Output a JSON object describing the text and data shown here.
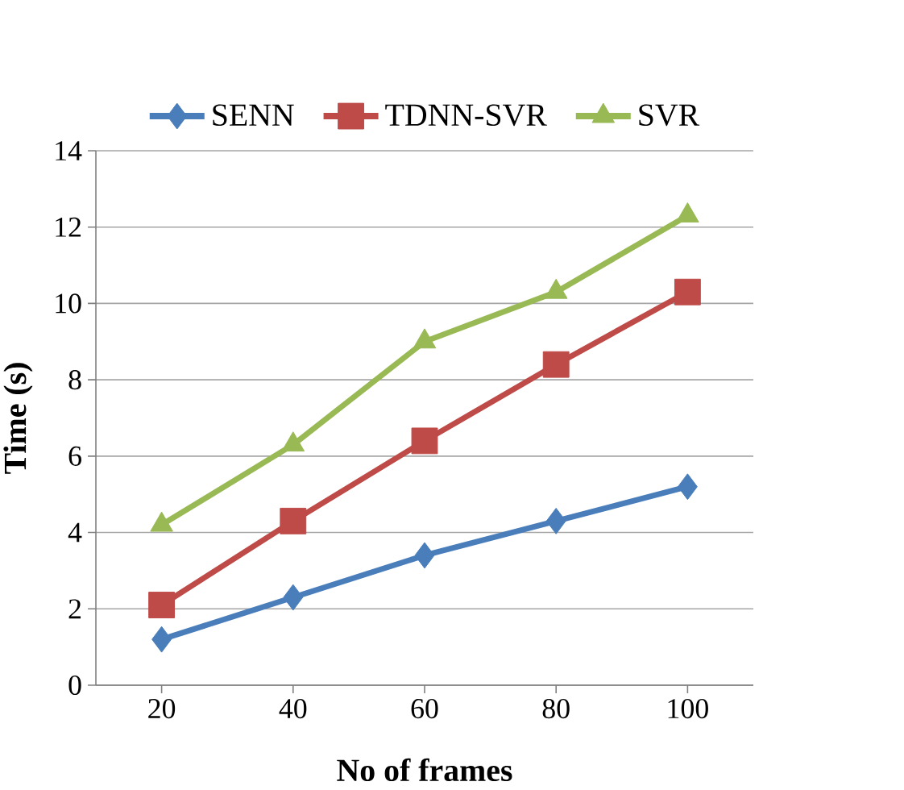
{
  "chart_data": {
    "type": "line",
    "xlabel": "No of frames",
    "ylabel": "Time (s)",
    "categories": [
      "20",
      "40",
      "60",
      "80",
      "100"
    ],
    "series": [
      {
        "name": "SENN",
        "color": "#4a7ebb",
        "marker": "diamond",
        "values": [
          1.2,
          2.3,
          3.4,
          4.3,
          5.2
        ]
      },
      {
        "name": "TDNN-SVR",
        "color": "#be4b48",
        "marker": "square",
        "values": [
          2.1,
          4.3,
          6.4,
          8.4,
          10.3
        ]
      },
      {
        "name": "SVR",
        "color": "#98b954",
        "marker": "triangle",
        "values": [
          4.2,
          6.3,
          9.0,
          10.3,
          12.3
        ]
      }
    ],
    "ylim": [
      0,
      14
    ],
    "yticks": [
      0,
      2,
      4,
      6,
      8,
      10,
      12,
      14
    ],
    "grid": "y",
    "legend": "top",
    "line_style": "solid"
  }
}
